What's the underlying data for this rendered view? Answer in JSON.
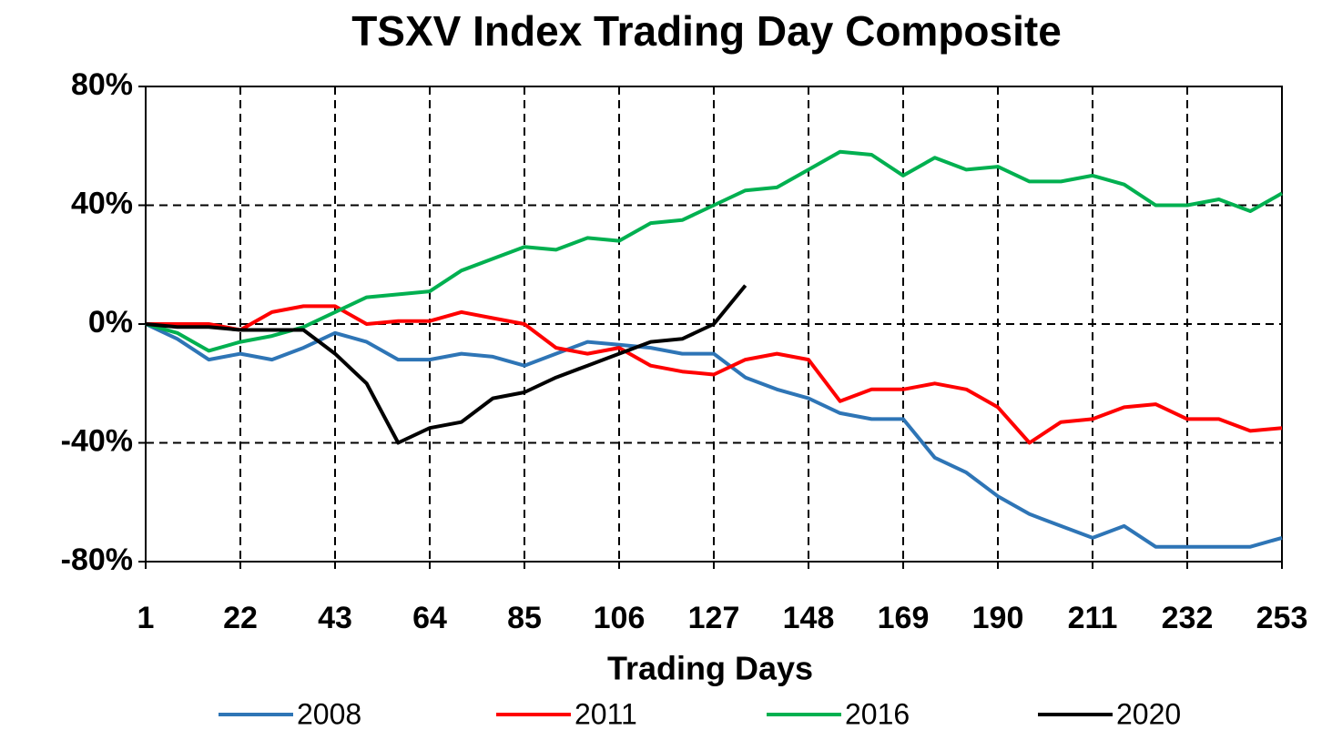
{
  "chart_data": {
    "type": "line",
    "title": "TSXV Index Trading Day Composite",
    "x_label": "Trading Days",
    "x": [
      1,
      8,
      15,
      22,
      29,
      36,
      43,
      50,
      57,
      64,
      71,
      78,
      85,
      92,
      99,
      106,
      113,
      120,
      127,
      134,
      141,
      148,
      155,
      162,
      169,
      176,
      183,
      190,
      197,
      204,
      211,
      218,
      225,
      232,
      239,
      246,
      253
    ],
    "series": [
      {
        "name": "2008",
        "color": "#2e75b6",
        "values": [
          0,
          -5,
          -12,
          -10,
          -12,
          -8,
          -3,
          -6,
          -12,
          -12,
          -10,
          -11,
          -14,
          -10,
          -6,
          -7,
          -8,
          -10,
          -10,
          -18,
          -22,
          -25,
          -30,
          -32,
          -32,
          -45,
          -50,
          -58,
          -64,
          -68,
          -72,
          -68,
          -75,
          -75,
          -75,
          -75,
          -72
        ]
      },
      {
        "name": "2011",
        "color": "#ff0000",
        "values": [
          0,
          0,
          0,
          -2,
          4,
          6,
          6,
          0,
          1,
          1,
          4,
          2,
          0,
          -8,
          -10,
          -8,
          -14,
          -16,
          -17,
          -12,
          -10,
          -12,
          -26,
          -22,
          -22,
          -20,
          -22,
          -28,
          -40,
          -33,
          -32,
          -28,
          -27,
          -32,
          -32,
          -36,
          -35
        ]
      },
      {
        "name": "2016",
        "color": "#00b050",
        "values": [
          0,
          -3,
          -9,
          -6,
          -4,
          -1,
          4,
          9,
          10,
          11,
          18,
          22,
          26,
          25,
          29,
          28,
          34,
          35,
          40,
          45,
          46,
          52,
          58,
          57,
          50,
          56,
          52,
          53,
          48,
          48,
          50,
          47,
          40,
          40,
          42,
          38,
          44
        ]
      },
      {
        "name": "2020",
        "color": "#000000",
        "values": [
          0,
          -1,
          -1,
          -2,
          -2,
          -2,
          -10,
          -20,
          -40,
          -35,
          -33,
          -25,
          -23,
          -18,
          -14,
          -10,
          -6,
          -5,
          0,
          13,
          null,
          null,
          null,
          null,
          null,
          null,
          null,
          null,
          null,
          null,
          null,
          null,
          null,
          null,
          null,
          null,
          null
        ]
      }
    ],
    "xlim": [
      1,
      253
    ],
    "xticks": [
      1,
      22,
      43,
      64,
      85,
      106,
      127,
      148,
      169,
      190,
      211,
      232,
      253
    ],
    "ylim": [
      -80,
      80
    ],
    "yticks": [
      {
        "value": -80,
        "label": "-80%"
      },
      {
        "value": -40,
        "label": "-40%"
      },
      {
        "value": 0,
        "label": "0%"
      },
      {
        "value": 40,
        "label": "40%"
      },
      {
        "value": 80,
        "label": "80%"
      }
    ],
    "grid": true,
    "legend": "bottom"
  }
}
